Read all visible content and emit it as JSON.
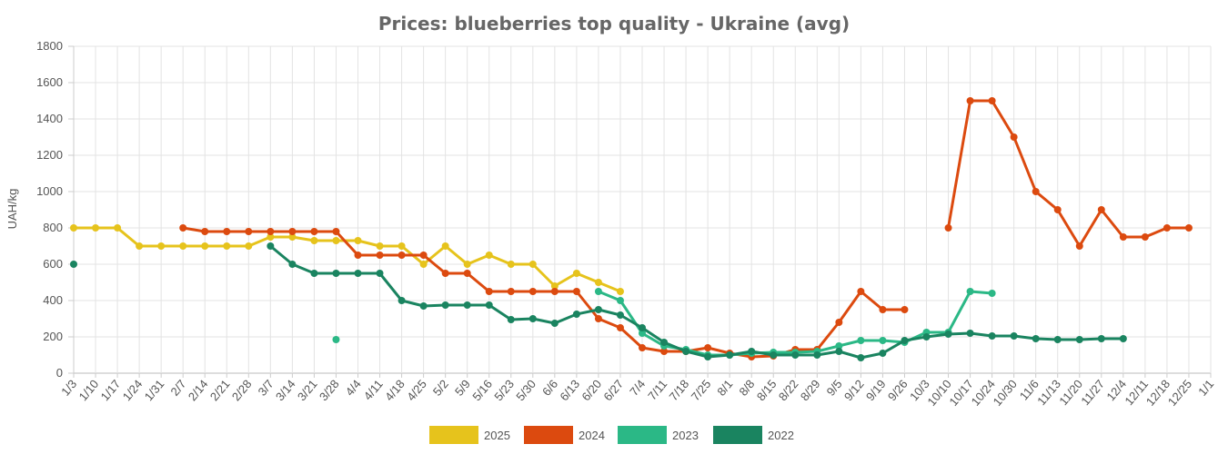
{
  "chart_data": {
    "type": "line",
    "title": "Prices: blueberries top quality - Ukraine (avg)",
    "ylabel": "UAH/kg",
    "xlabel": "",
    "ylim": [
      0,
      1800
    ],
    "yticks": [
      "0",
      "200",
      "400",
      "600",
      "800",
      "1000",
      "1200",
      "1400",
      "1600",
      "1800"
    ],
    "grid": true,
    "legend_position": "bottom",
    "categories": [
      "1/3",
      "1/10",
      "1/17",
      "1/24",
      "1/31",
      "2/7",
      "2/14",
      "2/21",
      "2/28",
      "3/7",
      "3/14",
      "3/21",
      "3/28",
      "4/4",
      "4/11",
      "4/18",
      "4/25",
      "5/2",
      "5/9",
      "5/16",
      "5/23",
      "5/30",
      "6/6",
      "6/13",
      "6/20",
      "6/27",
      "7/4",
      "7/11",
      "7/18",
      "7/25",
      "8/1",
      "8/8",
      "8/15",
      "8/22",
      "8/29",
      "9/5",
      "9/12",
      "9/19",
      "9/26",
      "10/3",
      "10/10",
      "10/17",
      "10/24",
      "10/30",
      "11/6",
      "11/13",
      "11/20",
      "11/27",
      "12/4",
      "12/11",
      "12/18",
      "12/25",
      "1/1"
    ],
    "series": [
      {
        "name": "2025",
        "color": "#e6c31c",
        "values": [
          800,
          800,
          800,
          700,
          700,
          700,
          700,
          700,
          700,
          750,
          750,
          730,
          730,
          730,
          700,
          700,
          600,
          700,
          600,
          650,
          600,
          600,
          480,
          550,
          500,
          450,
          null,
          null,
          null,
          null,
          null,
          null,
          null,
          null,
          null,
          null,
          null,
          null,
          null,
          null,
          null,
          null,
          null,
          null,
          null,
          null,
          null,
          null,
          null,
          null,
          null,
          null,
          null
        ]
      },
      {
        "name": "2024",
        "color": "#dc4a0f",
        "values": [
          null,
          null,
          null,
          null,
          null,
          800,
          780,
          780,
          780,
          780,
          780,
          780,
          780,
          650,
          650,
          650,
          650,
          550,
          550,
          450,
          450,
          450,
          450,
          450,
          300,
          250,
          140,
          120,
          120,
          140,
          110,
          90,
          95,
          130,
          130,
          280,
          450,
          350,
          350,
          null,
          800,
          1500,
          1500,
          1300,
          1000,
          900,
          700,
          900,
          750,
          750,
          800,
          800,
          null
        ]
      },
      {
        "name": "2023",
        "color": "#2bb886",
        "values": [
          null,
          null,
          null,
          null,
          null,
          null,
          null,
          null,
          null,
          null,
          null,
          null,
          185,
          null,
          null,
          null,
          null,
          null,
          null,
          null,
          null,
          null,
          null,
          null,
          450,
          400,
          220,
          150,
          130,
          100,
          100,
          110,
          115,
          115,
          120,
          150,
          180,
          180,
          170,
          225,
          225,
          450,
          440,
          null,
          null,
          null,
          null,
          null,
          null,
          null,
          null,
          null,
          null
        ]
      },
      {
        "name": "2022",
        "color": "#1a8460",
        "values": [
          600,
          null,
          null,
          null,
          null,
          null,
          null,
          null,
          null,
          700,
          600,
          550,
          550,
          550,
          550,
          400,
          370,
          375,
          375,
          375,
          295,
          300,
          275,
          325,
          350,
          320,
          250,
          170,
          120,
          90,
          100,
          120,
          100,
          100,
          100,
          120,
          85,
          110,
          180,
          200,
          215,
          220,
          205,
          205,
          190,
          185,
          185,
          190,
          190,
          null,
          null,
          null,
          null
        ]
      }
    ]
  }
}
